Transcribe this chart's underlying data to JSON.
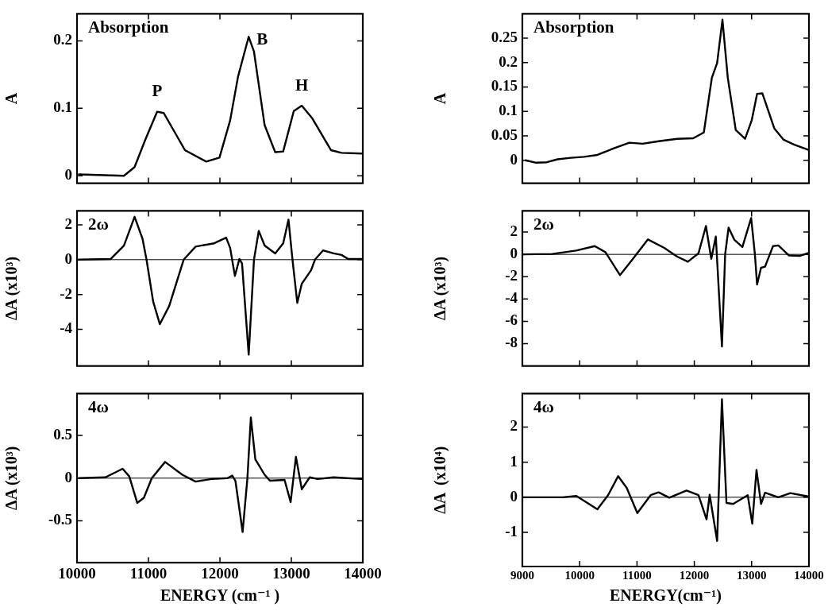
{
  "chart_data": [
    {
      "type": "line",
      "ylabel": "A",
      "annotations": [
        "Absorption",
        {
          "text": "P",
          "x": 11122,
          "y": 0.095
        },
        {
          "text": "B",
          "x": 12403,
          "y": 0.206
        },
        {
          "text": "H",
          "x": 13146,
          "y": 0.104
        }
      ],
      "xlim": [
        10000,
        14000
      ],
      "xticks": [
        10000,
        11000,
        12000,
        13000,
        14000
      ],
      "ylim": [
        -0.011,
        0.24
      ],
      "yticks": [
        0,
        0.1,
        0.2
      ],
      "tick_labels": "y",
      "grid": false,
      "legend": false,
      "marker": "none",
      "line_style": "solid",
      "series": [
        {
          "color": "#000000",
          "x": [
            10026,
            10657,
            10806,
            10954,
            11122,
            11214,
            11511,
            11809,
            11994,
            12143,
            12254,
            12403,
            12477,
            12626,
            12774,
            12886,
            13034,
            13146,
            13294,
            13554,
            13703,
            13981
          ],
          "values": [
            0.002,
            0,
            0.013,
            0.053,
            0.095,
            0.093,
            0.038,
            0.021,
            0.027,
            0.082,
            0.147,
            0.206,
            0.184,
            0.075,
            0.035,
            0.036,
            0.096,
            0.104,
            0.085,
            0.038,
            0.034,
            0.033
          ]
        }
      ]
    },
    {
      "type": "line",
      "ylabel": "A",
      "annotations": [
        "Absorption"
      ],
      "xlim": [
        9000,
        14000
      ],
      "xticks": [
        9000,
        10000,
        11000,
        12000,
        13000,
        14000
      ],
      "ylim": [
        -0.047,
        0.3
      ],
      "yticks": [
        0,
        0.05,
        0.1,
        0.15,
        0.2,
        0.25
      ],
      "tick_labels": "y",
      "grid": false,
      "legend": false,
      "marker": "none",
      "line_style": "solid",
      "series": [
        {
          "color": "#000000",
          "x": [
            9056,
            9241,
            9427,
            9613,
            9845,
            10077,
            10309,
            10588,
            10866,
            11098,
            11377,
            11702,
            11981,
            12166,
            12306,
            12398,
            12491,
            12584,
            12723,
            12886,
            13002,
            13095,
            13188,
            13397,
            13559,
            13745,
            14000
          ],
          "values": [
            0,
            -0.005,
            -0.004,
            0.002,
            0.005,
            0.007,
            0.011,
            0.024,
            0.036,
            0.034,
            0.039,
            0.044,
            0.045,
            0.057,
            0.169,
            0.199,
            0.288,
            0.169,
            0.062,
            0.044,
            0.082,
            0.136,
            0.137,
            0.065,
            0.042,
            0.032,
            0.021
          ]
        }
      ]
    },
    {
      "type": "line",
      "ylabel": "ΔA (x10³)",
      "annotations": [
        "2ω"
      ],
      "xlim": [
        10000,
        14000
      ],
      "xticks": [
        10000,
        11000,
        12000,
        13000,
        14000
      ],
      "ylim": [
        -6.1,
        2.8
      ],
      "yticks": [
        -4,
        -2,
        0,
        2
      ],
      "tick_labels": "y",
      "grid": false,
      "legend": false,
      "marker": "none",
      "line_style": "solid",
      "ref_lines": [
        {
          "axis": "y",
          "value": 0,
          "color": "#000000"
        }
      ],
      "series": [
        {
          "color": "#000000",
          "x": [
            10026,
            10472,
            10657,
            10806,
            10917,
            10973,
            11066,
            11159,
            11289,
            11493,
            11660,
            11920,
            12087,
            12143,
            12210,
            12273,
            12310,
            12403,
            12477,
            12544,
            12626,
            12774,
            12886,
            12960,
            13016,
            13083,
            13146,
            13276,
            13331,
            13443,
            13591,
            13703,
            13796,
            13981
          ],
          "values": [
            0,
            0.04,
            0.81,
            2.46,
            1.2,
            0,
            -2.41,
            -3.7,
            -2.67,
            0,
            0.75,
            0.94,
            1.26,
            0.68,
            -0.93,
            0.04,
            -0.22,
            -5.45,
            0,
            1.65,
            0.81,
            0.36,
            0.94,
            2.3,
            0,
            -2.48,
            -1.38,
            -0.61,
            0,
            0.53,
            0.36,
            0.27,
            0.04,
            0.04
          ]
        }
      ]
    },
    {
      "type": "line",
      "ylabel": "ΔA (x10³)",
      "annotations": [
        "2ω"
      ],
      "xlim": [
        9000,
        14000
      ],
      "xticks": [
        9000,
        10000,
        11000,
        12000,
        13000,
        14000
      ],
      "ylim": [
        -10,
        3.9
      ],
      "yticks": [
        -8,
        -6,
        -4,
        -2,
        0,
        2
      ],
      "tick_labels": "y",
      "grid": false,
      "legend": false,
      "marker": "none",
      "line_style": "solid",
      "ref_lines": [
        {
          "axis": "y",
          "value": 0,
          "color": "#000000"
        }
      ],
      "series": [
        {
          "color": "#000000",
          "x": [
            9009,
            9520,
            9938,
            10263,
            10449,
            10704,
            10913,
            11191,
            11470,
            11702,
            11888,
            12073,
            12203,
            12296,
            12375,
            12482,
            12538,
            12598,
            12700,
            12839,
            12992,
            13057,
            13095,
            13164,
            13234,
            13373,
            13466,
            13652,
            13838,
            14000
          ],
          "values": [
            0,
            0.04,
            0.34,
            0.74,
            0.2,
            -1.86,
            -0.5,
            1.34,
            0.6,
            -0.2,
            -0.66,
            0.1,
            2.54,
            -0.4,
            1.6,
            -8.26,
            0,
            2.4,
            1.3,
            0.66,
            3.26,
            0,
            -2.7,
            -1.2,
            -1.1,
            0.74,
            0.8,
            -0.1,
            -0.14,
            0.14
          ]
        }
      ]
    },
    {
      "type": "line",
      "xlabel": "ENERGY (cm⁻¹ )",
      "ylabel": "ΔA (x10³)",
      "annotations": [
        "4ω"
      ],
      "xlim": [
        10000,
        14000
      ],
      "xticks": [
        10000,
        11000,
        12000,
        13000,
        14000
      ],
      "ylim": [
        -0.99,
        0.99
      ],
      "yticks": [
        -0.5,
        0,
        0.5
      ],
      "grid": false,
      "legend": false,
      "marker": "none",
      "line_style": "solid",
      "ref_lines": [
        {
          "axis": "y",
          "value": 0,
          "color": "#000000"
        }
      ],
      "series": [
        {
          "color": "#000000",
          "x": [
            10026,
            10397,
            10639,
            10732,
            10843,
            10936,
            11047,
            11233,
            11474,
            11660,
            11883,
            12106,
            12173,
            12217,
            12318,
            12385,
            12433,
            12496,
            12626,
            12700,
            12905,
            12990,
            13064,
            13146,
            13257,
            13369,
            13591,
            13981
          ],
          "values": [
            0,
            0.01,
            0.11,
            0.02,
            -0.29,
            -0.23,
            0,
            0.19,
            0.04,
            -0.04,
            -0.01,
            0,
            0.03,
            -0.03,
            -0.63,
            0,
            0.71,
            0.22,
            0.04,
            -0.03,
            -0.02,
            -0.28,
            0.25,
            -0.13,
            0.01,
            -0.01,
            0.01,
            -0.01
          ]
        }
      ]
    },
    {
      "type": "line",
      "xlabel": "ENERGY(cm⁻¹)",
      "ylabel": "ΔA  (x10⁴)",
      "annotations": [
        "4ω"
      ],
      "xlim": [
        9000,
        14000
      ],
      "xticks": [
        9000,
        10000,
        11000,
        12000,
        13000,
        14000
      ],
      "ylim": [
        -1.97,
        2.95
      ],
      "yticks": [
        -1,
        0,
        1,
        2
      ],
      "grid": false,
      "legend": false,
      "marker": "none",
      "line_style": "solid",
      "ref_lines": [
        {
          "axis": "y",
          "value": 0,
          "color": "#000000"
        }
      ],
      "series": [
        {
          "color": "#000000",
          "x": [
            9009,
            9706,
            9938,
            10309,
            10495,
            10671,
            10820,
            11006,
            11238,
            11377,
            11563,
            11864,
            12073,
            12213,
            12268,
            12398,
            12482,
            12561,
            12677,
            12932,
            13011,
            13085,
            13164,
            13234,
            13466,
            13675,
            14000
          ],
          "values": [
            0,
            0,
            0.04,
            -0.34,
            0.06,
            0.6,
            0.27,
            -0.45,
            0.06,
            0.14,
            -0.01,
            0.19,
            0.06,
            -0.63,
            0.07,
            -1.24,
            2.79,
            -0.16,
            -0.19,
            0.06,
            -0.75,
            0.78,
            -0.19,
            0.13,
            0,
            0.12,
            0.02
          ]
        }
      ]
    }
  ]
}
